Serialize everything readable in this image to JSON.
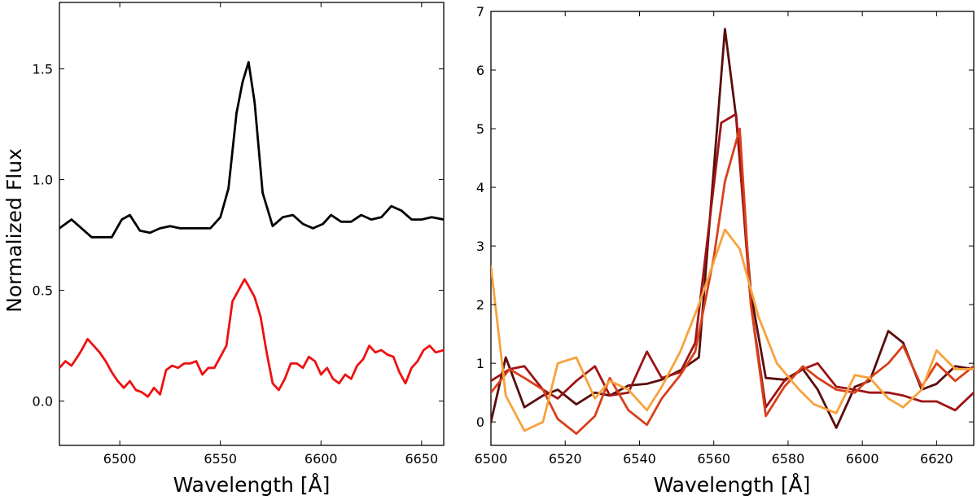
{
  "chart_data": [
    {
      "type": "line",
      "xlabel": "Wavelength [Å]",
      "ylabel": "Normalized Flux",
      "xlim": [
        6470,
        6661
      ],
      "ylim": [
        -0.2,
        1.8
      ],
      "xticks": [
        6500,
        6550,
        6600,
        6650
      ],
      "yticks": [
        0.0,
        0.5,
        1.0,
        1.5
      ],
      "xtick_labels": [
        "6500",
        "6550",
        "6600",
        "6650"
      ],
      "ytick_labels": [
        "0.0",
        "0.5",
        "1.0",
        "1.5"
      ],
      "grid": false,
      "series": [
        {
          "color": "#000000",
          "x": [
            6470,
            6476,
            6481,
            6486,
            6491,
            6496,
            6501,
            6505,
            6510,
            6515,
            6520,
            6525,
            6530,
            6535,
            6540,
            6545,
            6550,
            6554,
            6558,
            6561,
            6564,
            6567,
            6571,
            6576,
            6581,
            6586,
            6591,
            6596,
            6601,
            6605,
            6610,
            6615,
            6620,
            6625,
            6630,
            6635,
            6640,
            6645,
            6650,
            6655,
            6661
          ],
          "y": [
            0.78,
            0.82,
            0.78,
            0.74,
            0.74,
            0.74,
            0.82,
            0.84,
            0.77,
            0.76,
            0.78,
            0.79,
            0.78,
            0.78,
            0.78,
            0.78,
            0.83,
            0.96,
            1.3,
            1.44,
            1.53,
            1.35,
            0.94,
            0.79,
            0.83,
            0.84,
            0.8,
            0.78,
            0.8,
            0.84,
            0.81,
            0.81,
            0.84,
            0.82,
            0.83,
            0.88,
            0.86,
            0.82,
            0.82,
            0.83,
            0.82
          ]
        },
        {
          "color": "#ee1111",
          "x": [
            6470,
            6473,
            6476,
            6479,
            6481,
            6484,
            6487,
            6490,
            6493,
            6496,
            6499,
            6502,
            6505,
            6508,
            6511,
            6514,
            6517,
            6520,
            6523,
            6526,
            6529,
            6532,
            6535,
            6538,
            6541,
            6544,
            6547,
            6550,
            6553,
            6556,
            6559,
            6562,
            6564,
            6567,
            6570,
            6573,
            6576,
            6579,
            6582,
            6585,
            6588,
            6591,
            6594,
            6597,
            6600,
            6603,
            6606,
            6609,
            6612,
            6615,
            6618,
            6621,
            6624,
            6627,
            6630,
            6633,
            6636,
            6639,
            6642,
            6645,
            6648,
            6651,
            6654,
            6657,
            6661
          ],
          "y": [
            0.15,
            0.18,
            0.16,
            0.2,
            0.23,
            0.28,
            0.25,
            0.22,
            0.18,
            0.13,
            0.09,
            0.06,
            0.09,
            0.05,
            0.04,
            0.02,
            0.06,
            0.03,
            0.14,
            0.16,
            0.15,
            0.17,
            0.17,
            0.18,
            0.12,
            0.15,
            0.15,
            0.2,
            0.25,
            0.45,
            0.5,
            0.55,
            0.52,
            0.47,
            0.38,
            0.22,
            0.08,
            0.05,
            0.1,
            0.17,
            0.17,
            0.15,
            0.2,
            0.18,
            0.12,
            0.15,
            0.1,
            0.08,
            0.12,
            0.1,
            0.16,
            0.19,
            0.25,
            0.22,
            0.23,
            0.21,
            0.2,
            0.13,
            0.08,
            0.15,
            0.18,
            0.23,
            0.25,
            0.22,
            0.23
          ]
        }
      ]
    },
    {
      "type": "line",
      "xlabel": "Wavelength [Å]",
      "ylabel": "",
      "xlim": [
        6500,
        6630
      ],
      "ylim": [
        -0.4,
        7
      ],
      "xticks": [
        6500,
        6520,
        6540,
        6560,
        6580,
        6600,
        6620
      ],
      "yticks": [
        0,
        1,
        2,
        3,
        4,
        5,
        6,
        7
      ],
      "xtick_labels": [
        "6500",
        "6520",
        "6540",
        "6560",
        "6580",
        "6600",
        "6620"
      ],
      "ytick_labels": [
        "0",
        "1",
        "2",
        "3",
        "4",
        "5",
        "6",
        "7"
      ],
      "grid": false,
      "series": [
        {
          "color": "#5a0d0d",
          "x": [
            6500,
            6504,
            6509,
            6514,
            6518,
            6523,
            6528,
            6532,
            6537,
            6542,
            6546,
            6551,
            6556,
            6563,
            6566,
            6570,
            6574,
            6579,
            6584,
            6588,
            6593,
            6598,
            6602,
            6607,
            6611,
            6616,
            6620,
            6625,
            6630
          ],
          "y": [
            0.0,
            1.1,
            0.25,
            0.45,
            0.55,
            0.3,
            0.5,
            0.45,
            0.62,
            0.65,
            0.72,
            0.88,
            1.1,
            6.7,
            5.2,
            2.2,
            0.75,
            0.72,
            0.9,
            0.55,
            -0.1,
            0.6,
            0.7,
            1.55,
            1.35,
            0.55,
            0.65,
            0.95,
            0.9
          ]
        },
        {
          "color": "#9e1414",
          "x": [
            6500,
            6505,
            6509,
            6514,
            6518,
            6523,
            6528,
            6532,
            6537,
            6542,
            6546,
            6551,
            6555,
            6562,
            6566,
            6570,
            6574,
            6579,
            6584,
            6588,
            6593,
            6598,
            6602,
            6607,
            6611,
            6616,
            6620,
            6625,
            6630
          ],
          "y": [
            0.7,
            0.9,
            0.95,
            0.55,
            0.4,
            0.7,
            0.95,
            0.45,
            0.5,
            1.2,
            0.75,
            0.85,
            1.35,
            5.1,
            5.25,
            2.0,
            0.25,
            0.7,
            0.9,
            1.0,
            0.6,
            0.55,
            0.5,
            0.5,
            0.45,
            0.35,
            0.35,
            0.2,
            0.5
          ]
        },
        {
          "color": "#d8401a",
          "x": [
            6500,
            6505,
            6509,
            6514,
            6518,
            6523,
            6528,
            6532,
            6537,
            6542,
            6546,
            6551,
            6555,
            6560,
            6563,
            6567,
            6570,
            6574,
            6579,
            6584,
            6588,
            6593,
            6598,
            6602,
            6607,
            6611,
            6616,
            6620,
            6625,
            6630
          ],
          "y": [
            0.5,
            0.9,
            0.75,
            0.55,
            0.05,
            -0.2,
            0.1,
            0.75,
            0.2,
            -0.05,
            0.4,
            0.8,
            1.2,
            2.8,
            4.1,
            5.0,
            2.0,
            0.1,
            0.6,
            0.95,
            0.75,
            0.55,
            0.5,
            0.75,
            1.0,
            1.3,
            0.6,
            1.0,
            0.7,
            0.95
          ]
        },
        {
          "color": "#f7a23c",
          "x": [
            6500,
            6504,
            6509,
            6514,
            6518,
            6523,
            6528,
            6532,
            6537,
            6542,
            6546,
            6551,
            6556,
            6563,
            6567,
            6572,
            6577,
            6583,
            6587,
            6593,
            6598,
            6602,
            6607,
            6611,
            6616,
            6620,
            6625,
            6630
          ],
          "y": [
            2.65,
            0.45,
            -0.15,
            0.0,
            1.0,
            1.1,
            0.4,
            0.7,
            0.55,
            0.2,
            0.6,
            1.2,
            2.0,
            3.28,
            2.95,
            1.8,
            1.0,
            0.55,
            0.3,
            0.15,
            0.8,
            0.75,
            0.4,
            0.25,
            0.55,
            1.22,
            0.9,
            0.9
          ]
        }
      ]
    }
  ]
}
